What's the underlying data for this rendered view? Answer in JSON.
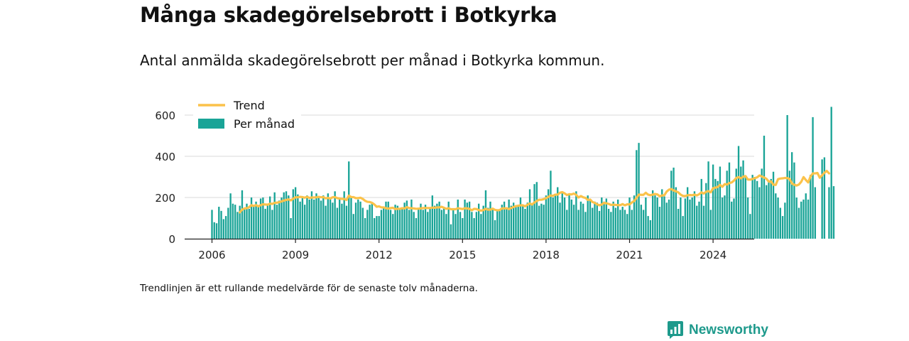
{
  "title": "Många skadegörelsebrott i Botkyrka",
  "subtitle": "Antal anmälda skadegörelsebrott per månad i Botkyrka kommun.",
  "note": "Trendlinjen är ett rullande medelvärde för de senaste tolv månaderna.",
  "brand": {
    "name": "Newsworthy",
    "icon": "newsworthy-logo-icon",
    "color": "#1e9a8c"
  },
  "chart_data": {
    "type": "bar",
    "x_start": "2006-01",
    "x_end": "2024-06",
    "xticks": [
      "2006",
      "2009",
      "2012",
      "2015",
      "2018",
      "2021",
      "2024"
    ],
    "yticks": [
      "0",
      "200",
      "400",
      "600"
    ],
    "ylim": [
      0,
      640
    ],
    "grid": true,
    "legend_position": "top-left",
    "colors": {
      "bars": "#1aa497",
      "trend": "#fbc24a",
      "grid": "#d9d9d9",
      "axis": "#222222"
    },
    "series": [
      {
        "name": "Per månad",
        "type": "bar",
        "values": [
          140,
          80,
          75,
          155,
          135,
          95,
          110,
          150,
          220,
          170,
          165,
          130,
          160,
          235,
          150,
          170,
          145,
          200,
          160,
          180,
          155,
          195,
          200,
          145,
          170,
          205,
          140,
          225,
          165,
          185,
          200,
          225,
          230,
          210,
          100,
          240,
          250,
          215,
          180,
          200,
          165,
          210,
          190,
          230,
          190,
          220,
          200,
          185,
          210,
          160,
          220,
          200,
          175,
          230,
          150,
          200,
          170,
          230,
          160,
          375,
          200,
          120,
          175,
          190,
          180,
          150,
          100,
          140,
          165,
          175,
          100,
          110,
          110,
          140,
          155,
          180,
          180,
          140,
          120,
          165,
          160,
          145,
          150,
          175,
          185,
          140,
          190,
          130,
          100,
          150,
          170,
          140,
          165,
          130,
          150,
          210,
          160,
          170,
          180,
          140,
          150,
          120,
          180,
          70,
          145,
          120,
          190,
          130,
          100,
          190,
          175,
          180,
          130,
          100,
          130,
          170,
          120,
          160,
          235,
          150,
          180,
          150,
          90,
          135,
          140,
          165,
          180,
          150,
          190,
          160,
          175,
          155,
          160,
          200,
          165,
          145,
          175,
          240,
          170,
          265,
          275,
          160,
          170,
          165,
          210,
          240,
          330,
          200,
          210,
          250,
          175,
          220,
          200,
          140,
          220,
          190,
          165,
          230,
          140,
          180,
          170,
          130,
          210,
          190,
          150,
          180,
          175,
          135,
          200,
          180,
          195,
          145,
          130,
          180,
          150,
          190,
          140,
          155,
          140,
          120,
          200,
          140,
          210,
          430,
          465,
          165,
          140,
          200,
          110,
          90,
          235,
          210,
          200,
          155,
          240,
          205,
          175,
          190,
          330,
          345,
          250,
          145,
          200,
          110,
          195,
          250,
          190,
          200,
          230,
          160,
          180,
          290,
          160,
          270,
          375,
          140,
          360,
          290,
          280,
          350,
          200,
          210,
          330,
          370,
          180,
          195,
          340,
          450,
          350,
          380,
          300,
          200,
          120,
          310,
          300,
          280,
          250,
          340,
          500,
          260,
          280,
          290,
          325,
          220,
          200,
          150,
          110,
          175,
          600,
          330,
          420,
          370,
          200,
          150,
          180,
          190,
          220,
          190,
          310,
          590,
          250,
          0,
          0,
          385,
          395,
          0,
          250,
          640,
          255
        ]
      },
      {
        "name": "Trend",
        "type": "line",
        "values": [
          null,
          null,
          null,
          null,
          null,
          null,
          null,
          null,
          null,
          null,
          null,
          null,
          128,
          141,
          147,
          148,
          153,
          163,
          159,
          163,
          157,
          163,
          167,
          166,
          165,
          170,
          169,
          174,
          175,
          177,
          181,
          185,
          188,
          191,
          186,
          194,
          201,
          201,
          203,
          202,
          199,
          203,
          198,
          200,
          200,
          201,
          203,
          201,
          202,
          196,
          198,
          195,
          201,
          202,
          197,
          195,
          193,
          193,
          188,
          209,
          202,
          202,
          197,
          197,
          199,
          193,
          184,
          179,
          178,
          174,
          166,
          155,
          157,
          152,
          152,
          148,
          146,
          149,
          150,
          144,
          145,
          145,
          148,
          147,
          153,
          149,
          148,
          147,
          145,
          146,
          147,
          149,
          149,
          149,
          149,
          151,
          150,
          152,
          152,
          155,
          150,
          145,
          148,
          143,
          143,
          143,
          148,
          146,
          144,
          148,
          147,
          145,
          138,
          145,
          144,
          139,
          136,
          139,
          145,
          141,
          141,
          146,
          140,
          138,
          139,
          147,
          147,
          148,
          144,
          149,
          154,
          158,
          160,
          162,
          162,
          157,
          165,
          171,
          166,
          176,
          183,
          189,
          189,
          192,
          197,
          203,
          210,
          208,
          214,
          214,
          223,
          226,
          220,
          212,
          216,
          215,
          219,
          213,
          200,
          207,
          201,
          198,
          188,
          190,
          178,
          174,
          167,
          162,
          166,
          174,
          172,
          169,
          164,
          165,
          164,
          163,
          163,
          168,
          162,
          167,
          166,
          176,
          183,
          198,
          214,
          213,
          213,
          223,
          214,
          211,
          214,
          217,
          215,
          206,
          210,
          211,
          229,
          238,
          241,
          234,
          230,
          225,
          214,
          208,
          207,
          211,
          212,
          211,
          214,
          210,
          216,
          225,
          219,
          228,
          231,
          225,
          245,
          248,
          251,
          261,
          252,
          265,
          263,
          270,
          273,
          282,
          295,
          299,
          293,
          301,
          304,
          287,
          287,
          290,
          294,
          298,
          307,
          302,
          297,
          291,
          277,
          278,
          262,
          261,
          289,
          292,
          293,
          295,
          294,
          290,
          268,
          262,
          258,
          263,
          276,
          299,
          285,
          273,
          302,
          317,
          317,
          319,
          296,
          308,
          320,
          329,
          317
        ]
      }
    ]
  }
}
